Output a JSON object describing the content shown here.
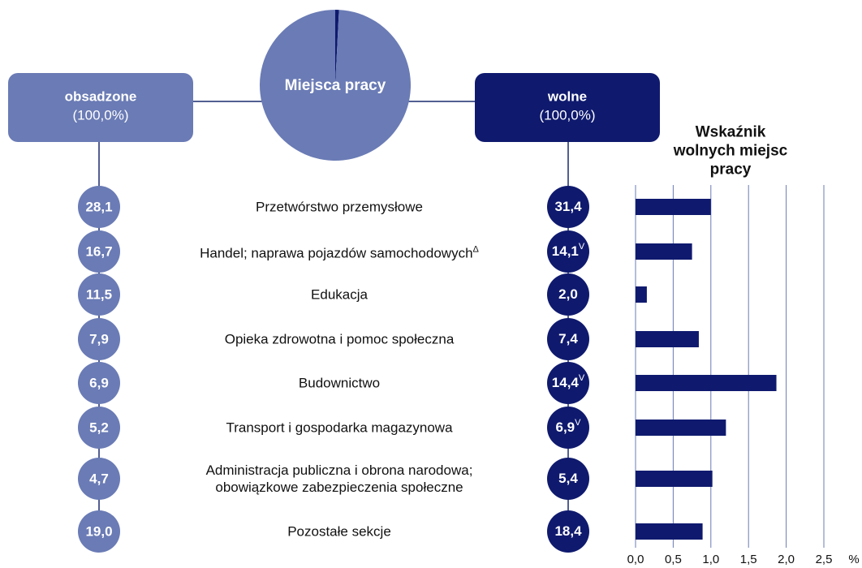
{
  "chart_data": [
    {
      "type": "pie",
      "title": "Miejsca pracy",
      "categories": [
        "obsadzone",
        "wolne"
      ],
      "values": [
        99.2,
        0.8
      ],
      "colors": [
        "#6a7bb5",
        "#0f1a6e"
      ]
    },
    {
      "type": "barh",
      "title": "Wskaźnik\nwolnych miejsc pracy",
      "categories": [
        "Przetwórstwo przemysłowe",
        "Handel; naprawa pojazdów samochodowych",
        "Edukacja",
        "Opieka zdrowotna i pomoc społeczna",
        "Budownictwo",
        "Transport i gospodarka magazynowa",
        "Administracja publiczna i obrona narodowa;\nobowiązkowe zabezpieczenia społeczne",
        "Pozostałe sekcje"
      ],
      "category_marks": [
        null,
        "Δ",
        null,
        null,
        null,
        null,
        null,
        null
      ],
      "values": [
        1.0,
        0.75,
        0.15,
        0.84,
        1.87,
        1.2,
        1.02,
        0.89
      ],
      "color": "#0f1a6e",
      "xlim": [
        0,
        2.5
      ],
      "xticks": [
        {
          "value": 0,
          "label": "0,0"
        },
        {
          "value": 0.5,
          "label": "0,5"
        },
        {
          "value": 1,
          "label": "1,0"
        },
        {
          "value": 1.5,
          "label": "1,5"
        },
        {
          "value": 2,
          "label": "2,0"
        },
        {
          "value": 2.5,
          "label": "2,5"
        }
      ],
      "unit": "%",
      "grid": true
    }
  ],
  "occupied": {
    "share": "(100,0%)",
    "color": "#6a7bb5",
    "values": [
      28.1,
      16.7,
      11.5,
      7.9,
      6.9,
      5.2,
      4.7,
      19.0
    ],
    "value_labels": [
      "28,1",
      "16,7",
      "11,5",
      "7,9",
      "6,9",
      "5,2",
      "4,7",
      "19,0"
    ]
  },
  "vacant": {
    "share": "(100,0%)",
    "color": "#0f1a6e",
    "values": [
      31.4,
      14.1,
      2.0,
      7.4,
      14.4,
      6.9,
      5.4,
      18.4
    ],
    "value_labels": [
      "31,4",
      "14,1",
      "2,0",
      "7,4",
      "14,4",
      "6,9",
      "5,4",
      "18,4"
    ],
    "flags": [
      null,
      "V",
      null,
      null,
      "V",
      "V",
      null,
      null
    ]
  }
}
